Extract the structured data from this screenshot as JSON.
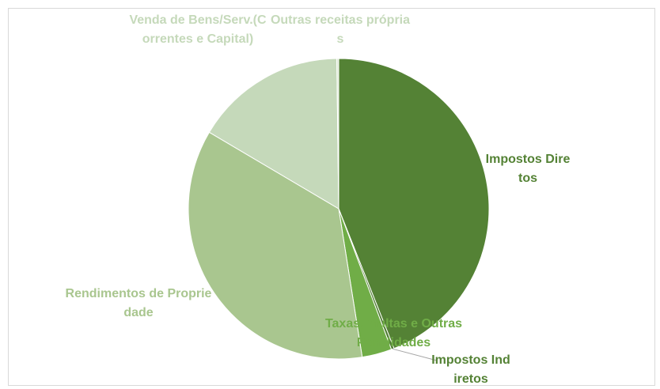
{
  "chart_data": {
    "type": "pie",
    "categories": [
      "Impostos Diretos",
      "Impostos Indiretos",
      "Taxas, Multas e Outras Penalidades",
      "Rendimentos de Propriedade",
      "Venda de Bens/Serv.(Correntes e Capital)",
      "Outras receitas próprias"
    ],
    "values": [
      44,
      0.3,
      3.2,
      36,
      16.3,
      0.2
    ],
    "colors": [
      "#548235",
      "#4e7a31",
      "#70ad47",
      "#a9c68f",
      "#c5d9ba",
      "#d8e6cf"
    ]
  }
}
